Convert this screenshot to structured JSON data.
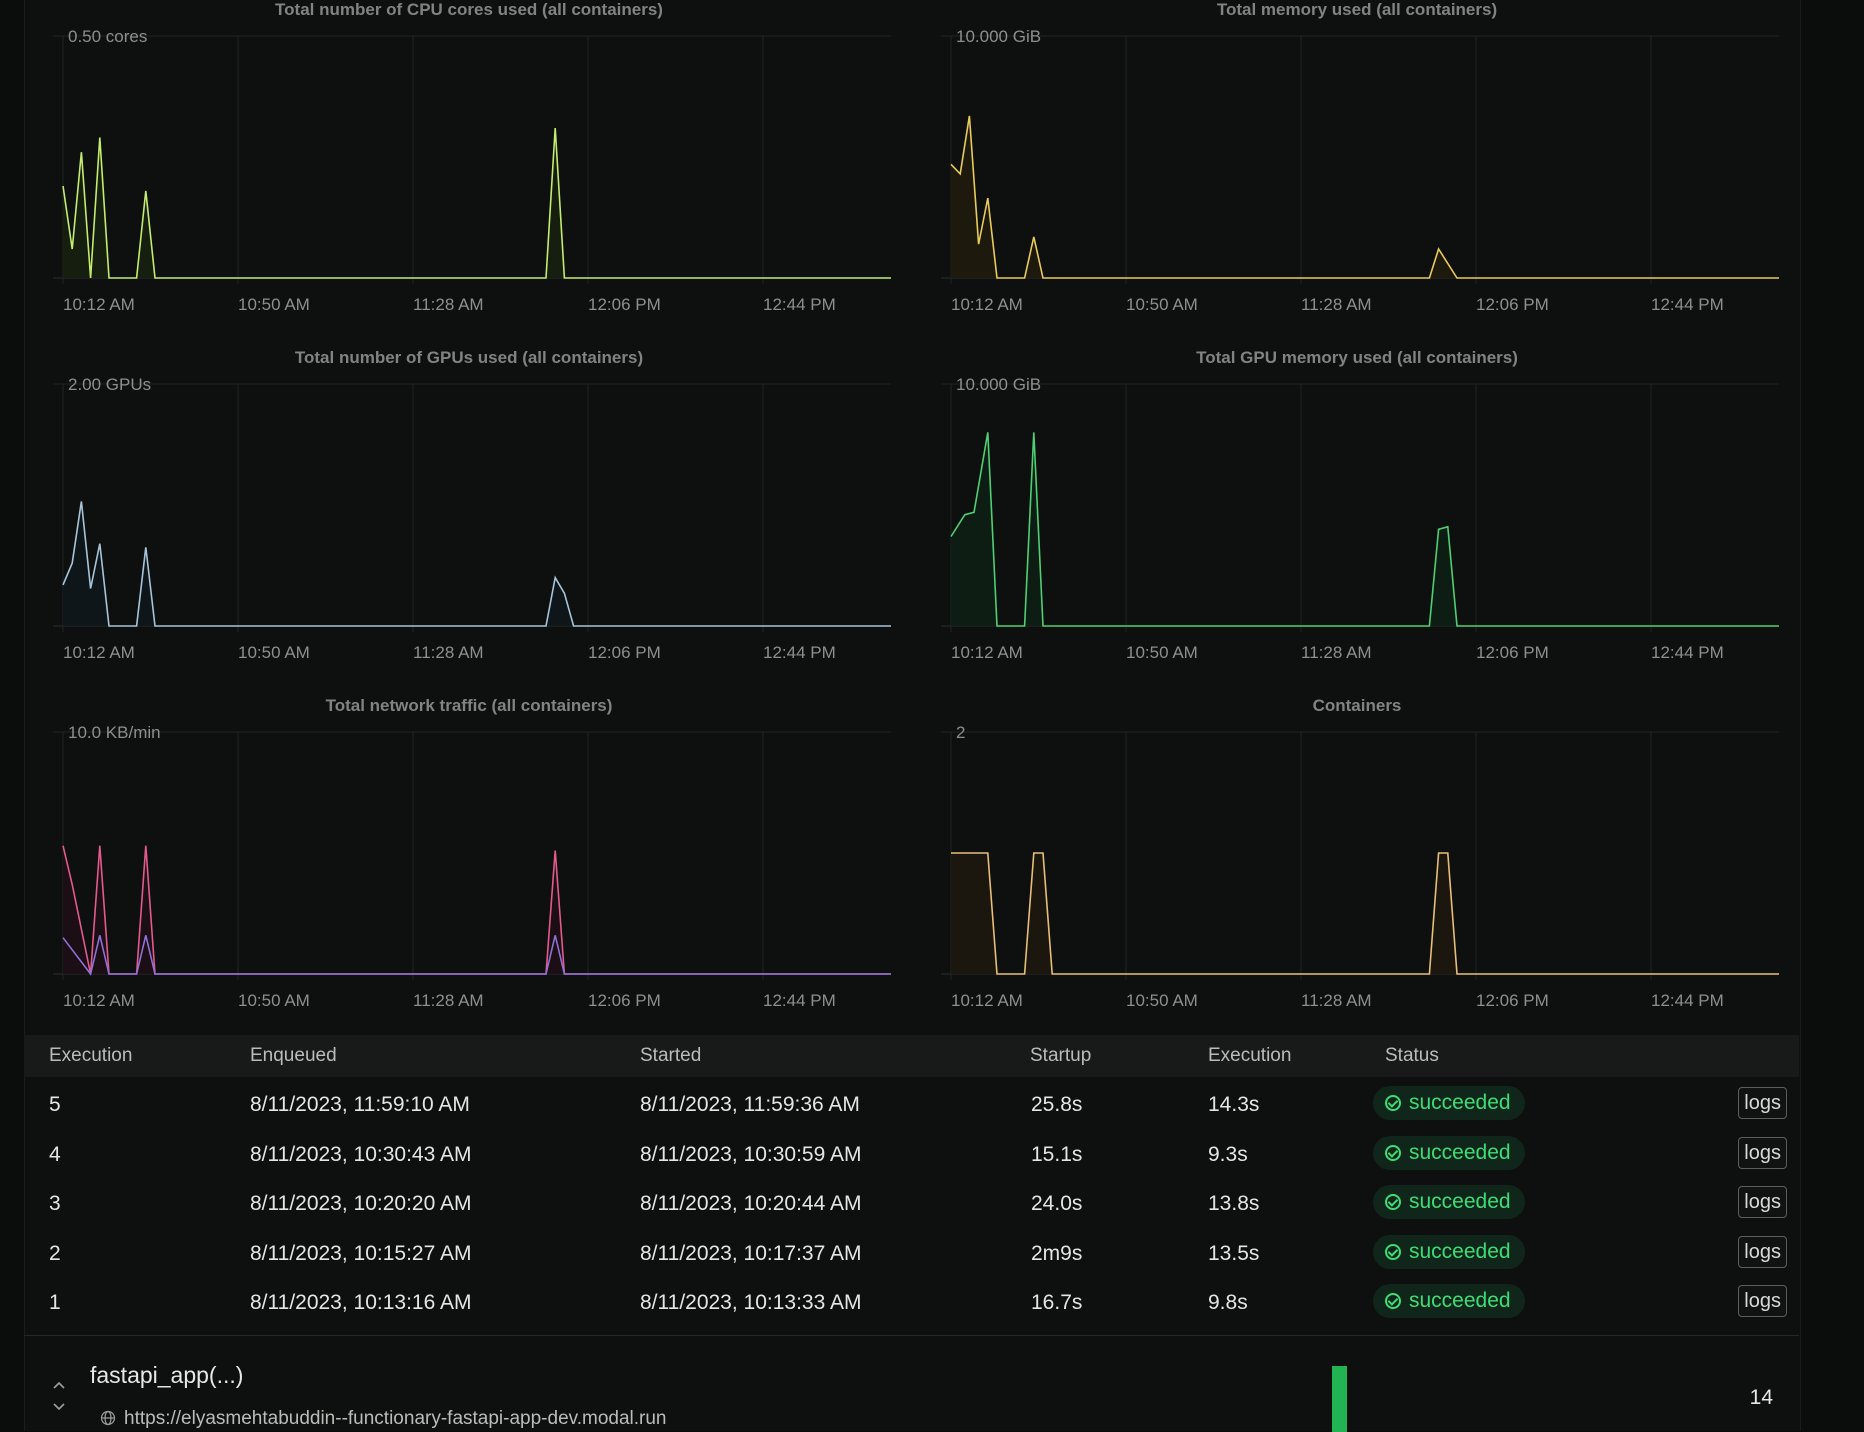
{
  "charts": [
    {
      "title": "Total number of CPU cores used (all containers)",
      "ymax_label": "0.50 cores",
      "ymax": 0.5,
      "color": "#c4ec6e",
      "fill": "#16200f",
      "ticks": [
        "10:12 AM",
        "10:50 AM",
        "11:28 AM",
        "12:06 PM",
        "12:44 PM"
      ],
      "series": [
        {
          "color": "#c4ec6e",
          "points": [
            [
              0,
              0.19
            ],
            [
              2,
              0.06
            ],
            [
              4,
              0.26
            ],
            [
              6,
              0
            ],
            [
              8,
              0.29
            ],
            [
              10,
              0
            ],
            [
              16,
              0
            ],
            [
              18,
              0.18
            ],
            [
              20,
              0
            ],
            [
              105,
              0
            ],
            [
              107,
              0.31
            ],
            [
              109,
              0
            ],
            [
              180,
              0
            ]
          ]
        }
      ]
    },
    {
      "title": "Total memory used (all containers)",
      "ymax_label": "10.000 GiB",
      "ymax": 10,
      "color": "#e8cb5a",
      "fill": "#1f1c0d",
      "ticks": [
        "10:12 AM",
        "10:50 AM",
        "11:28 AM",
        "12:06 PM",
        "12:44 PM"
      ],
      "series": [
        {
          "color": "#e8cb5a",
          "points": [
            [
              0,
              4.7
            ],
            [
              2,
              4.3
            ],
            [
              4,
              6.7
            ],
            [
              6,
              1.4
            ],
            [
              8,
              3.3
            ],
            [
              10,
              0
            ],
            [
              16,
              0
            ],
            [
              18,
              1.7
            ],
            [
              20,
              0
            ],
            [
              104,
              0
            ],
            [
              106,
              1.2
            ],
            [
              110,
              0
            ],
            [
              180,
              0
            ]
          ]
        }
      ]
    },
    {
      "title": "Total number of GPUs used (all containers)",
      "ymax_label": "2.00 GPUs",
      "ymax": 2,
      "color": "#a9c4d8",
      "fill": "#10171b",
      "ticks": [
        "10:12 AM",
        "10:50 AM",
        "11:28 AM",
        "12:06 PM",
        "12:44 PM"
      ],
      "series": [
        {
          "color": "#a9c4d8",
          "points": [
            [
              0,
              0.34
            ],
            [
              2,
              0.52
            ],
            [
              4,
              1.03
            ],
            [
              6,
              0.31
            ],
            [
              8,
              0.68
            ],
            [
              10,
              0
            ],
            [
              16,
              0
            ],
            [
              18,
              0.65
            ],
            [
              20,
              0
            ],
            [
              105,
              0
            ],
            [
              107,
              0.4
            ],
            [
              109,
              0.27
            ],
            [
              111,
              0
            ],
            [
              180,
              0
            ]
          ]
        }
      ]
    },
    {
      "title": "Total GPU memory used (all containers)",
      "ymax_label": "10.000 GiB",
      "ymax": 10,
      "color": "#4ecf73",
      "fill": "#0e1f14",
      "ticks": [
        "10:12 AM",
        "10:50 AM",
        "11:28 AM",
        "12:06 PM",
        "12:44 PM"
      ],
      "series": [
        {
          "color": "#4ecf73",
          "points": [
            [
              0,
              3.7
            ],
            [
              3,
              4.6
            ],
            [
              5,
              4.7
            ],
            [
              8,
              8
            ],
            [
              10,
              0
            ],
            [
              16,
              0
            ],
            [
              18,
              8
            ],
            [
              20,
              0
            ],
            [
              104,
              0
            ],
            [
              106,
              4
            ],
            [
              108,
              4.1
            ],
            [
              110,
              0
            ],
            [
              180,
              0
            ]
          ]
        }
      ]
    },
    {
      "title": "Total network traffic (all containers)",
      "ymax_label": "10.0 KB/min",
      "ymax": 10,
      "color": "#e35a8c",
      "fill": "#1d0f16",
      "ticks": [
        "10:12 AM",
        "10:50 AM",
        "11:28 AM",
        "12:06 PM",
        "12:44 PM"
      ],
      "series": [
        {
          "color": "#e35a8c",
          "points": [
            [
              0,
              5.3
            ],
            [
              2,
              3.7
            ],
            [
              6,
              0
            ],
            [
              8,
              5.3
            ],
            [
              10,
              0
            ],
            [
              16,
              0
            ],
            [
              18,
              5.3
            ],
            [
              20,
              0
            ],
            [
              105,
              0
            ],
            [
              107,
              5.1
            ],
            [
              109,
              0
            ],
            [
              180,
              0
            ]
          ]
        },
        {
          "color": "#8d71d9",
          "points": [
            [
              0,
              1.5
            ],
            [
              2,
              1
            ],
            [
              6,
              0
            ],
            [
              8,
              1.6
            ],
            [
              10,
              0
            ],
            [
              16,
              0
            ],
            [
              18,
              1.6
            ],
            [
              20,
              0
            ],
            [
              105,
              0
            ],
            [
              107,
              1.6
            ],
            [
              109,
              0
            ],
            [
              180,
              0
            ]
          ]
        }
      ]
    },
    {
      "title": "Containers",
      "ymax_label": "2",
      "ymax": 2,
      "color": "#e7bf79",
      "fill": "#1d1810",
      "ticks": [
        "10:12 AM",
        "10:50 AM",
        "11:28 AM",
        "12:06 PM",
        "12:44 PM"
      ],
      "series": [
        {
          "color": "#e7bf79",
          "points": [
            [
              0,
              1
            ],
            [
              8,
              1
            ],
            [
              10,
              0
            ],
            [
              16,
              0
            ],
            [
              18,
              1
            ],
            [
              20,
              1
            ],
            [
              22,
              0
            ],
            [
              104,
              0
            ],
            [
              106,
              1
            ],
            [
              108,
              1
            ],
            [
              110,
              0
            ],
            [
              180,
              0
            ]
          ]
        }
      ]
    }
  ],
  "table": {
    "headers": [
      "Execution",
      "Enqueued",
      "Started",
      "Startup",
      "Execution",
      "Status"
    ],
    "rows": [
      {
        "id": "5",
        "enqueued": "8/11/2023, 11:59:10 AM",
        "started": "8/11/2023, 11:59:36 AM",
        "startup": "25.8s",
        "execution": "14.3s",
        "status": "succeeded",
        "action": "logs"
      },
      {
        "id": "4",
        "enqueued": "8/11/2023, 10:30:43 AM",
        "started": "8/11/2023, 10:30:59 AM",
        "startup": "15.1s",
        "execution": "9.3s",
        "status": "succeeded",
        "action": "logs"
      },
      {
        "id": "3",
        "enqueued": "8/11/2023, 10:20:20 AM",
        "started": "8/11/2023, 10:20:44 AM",
        "startup": "24.0s",
        "execution": "13.8s",
        "status": "succeeded",
        "action": "logs"
      },
      {
        "id": "2",
        "enqueued": "8/11/2023, 10:15:27 AM",
        "started": "8/11/2023, 10:17:37 AM",
        "startup": "2m9s",
        "execution": "13.5s",
        "status": "succeeded",
        "action": "logs"
      },
      {
        "id": "1",
        "enqueued": "8/11/2023, 10:13:16 AM",
        "started": "8/11/2023, 10:13:33 AM",
        "startup": "16.7s",
        "execution": "9.8s",
        "status": "succeeded",
        "action": "logs"
      }
    ]
  },
  "footer": {
    "function_name": "fastapi_app(...)",
    "url": "https://elyasmehtabuddin--functionary-fastapi-app-dev.modal.run",
    "count": "14",
    "icons": [
      "chevron-up-icon",
      "chevron-down-icon",
      "globe-icon"
    ]
  }
}
